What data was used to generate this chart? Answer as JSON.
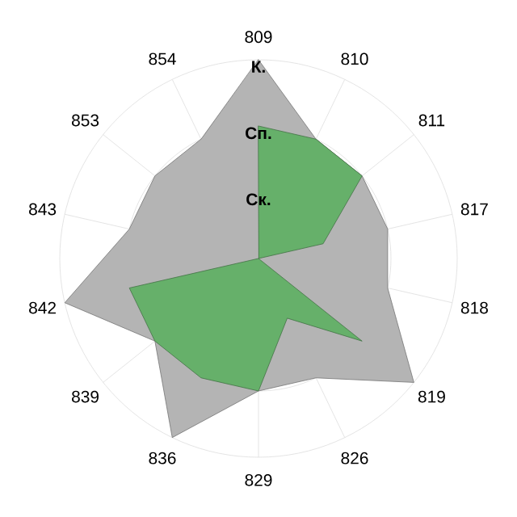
{
  "chart_data": {
    "type": "radar",
    "categories": [
      "809",
      "810",
      "811",
      "817",
      "818",
      "819",
      "826",
      "829",
      "836",
      "839",
      "842",
      "843",
      "853",
      "854"
    ],
    "series": [
      {
        "color": "#b4b4b4",
        "values": [
          3,
          2,
          2,
          2,
          2,
          3,
          2,
          2,
          3,
          2,
          3,
          2,
          2,
          2
        ]
      },
      {
        "color": "#66b06a",
        "values": [
          2,
          2,
          2,
          1,
          0,
          2,
          1,
          2,
          2,
          2,
          2,
          0,
          0,
          0
        ]
      }
    ],
    "ylim": [
      0,
      3
    ],
    "yticks": [
      {
        "value": 1,
        "label": "Ск."
      },
      {
        "value": 2,
        "label": "Сп."
      },
      {
        "value": 3,
        "label": "К."
      }
    ],
    "grid": true
  }
}
